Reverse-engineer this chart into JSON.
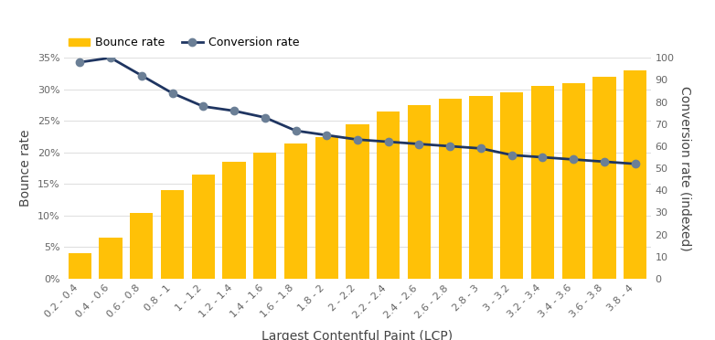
{
  "categories": [
    "0.2 - 0.4",
    "0.4 - 0.6",
    "0.6 - 0.8",
    "0.8 - 1",
    "1 - 1.2",
    "1.2 - 1.4",
    "1.4 - 1.6",
    "1.6 - 1.8",
    "1.8 - 2",
    "2 - 2.2",
    "2.2 - 2.4",
    "2.4 - 2.6",
    "2.6 - 2.8",
    "2.8 - 3",
    "3 - 3.2",
    "3.2 - 3.4",
    "3.4 - 3.6",
    "3.6 - 3.8",
    "3.8 - 4"
  ],
  "bounce_rate": [
    0.04,
    0.065,
    0.105,
    0.14,
    0.165,
    0.185,
    0.2,
    0.215,
    0.225,
    0.245,
    0.265,
    0.275,
    0.285,
    0.29,
    0.295,
    0.305,
    0.31,
    0.32,
    0.33
  ],
  "conversion_rate": [
    98,
    100,
    92,
    84,
    78,
    76,
    73,
    67,
    65,
    63,
    62,
    61,
    60,
    59,
    56,
    55,
    54,
    53,
    52
  ],
  "bar_color": "#FFC107",
  "line_color": "#1f3561",
  "marker_color": "#6b7f96",
  "xlabel": "Largest Contentful Paint (LCP)",
  "ylabel_left": "Bounce rate",
  "ylabel_right": "Conversion rate (indexed)",
  "ylim_left": [
    0,
    0.35
  ],
  "ylim_right": [
    0,
    100
  ],
  "yticks_left": [
    0.0,
    0.05,
    0.1,
    0.15,
    0.2,
    0.25,
    0.3,
    0.35
  ],
  "yticks_right": [
    0,
    10,
    20,
    30,
    40,
    50,
    60,
    70,
    80,
    90,
    100
  ],
  "legend_labels": [
    "Bounce rate",
    "Conversion rate"
  ],
  "bg_color": "#ffffff",
  "grid_color": "#e0e0e0",
  "tick_color": "#666666",
  "label_color": "#444444",
  "tick_fontsize": 8,
  "label_fontsize": 10
}
